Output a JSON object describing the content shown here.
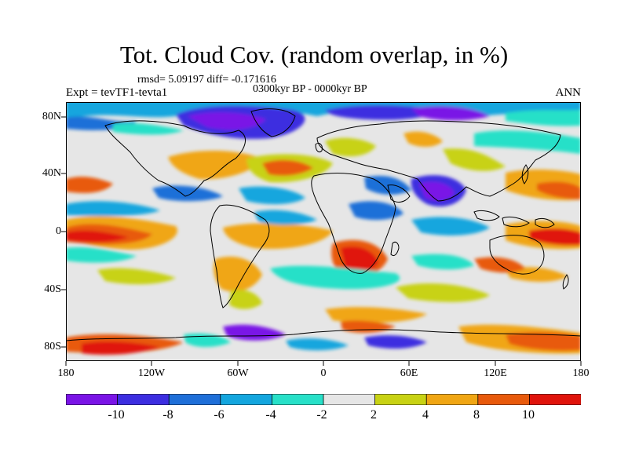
{
  "title": "Tot. Cloud Cov. (random overlap, in %)",
  "stats": "rmsd= 5.09197 diff= -0.171616",
  "period": "0300kyr BP - 0000kyr BP",
  "expt": "Expt = tevTF1-tevta1",
  "season": "ANN",
  "lat_labels": [
    "80N",
    "40N",
    "0",
    "40S",
    "80S"
  ],
  "lon_labels": [
    "180",
    "120W",
    "60W",
    "0",
    "60E",
    "120E",
    "180"
  ],
  "colorbar": {
    "labels": [
      "-10",
      "-8",
      "-6",
      "-4",
      "-2",
      "2",
      "4",
      "8",
      "10"
    ],
    "colors": [
      "#7a14e6",
      "#3c2ee0",
      "#1f6fd8",
      "#14a6de",
      "#28e0c8",
      "#e6e6e6",
      "#c8d214",
      "#f0a614",
      "#e85a0c",
      "#e0140c"
    ]
  }
}
